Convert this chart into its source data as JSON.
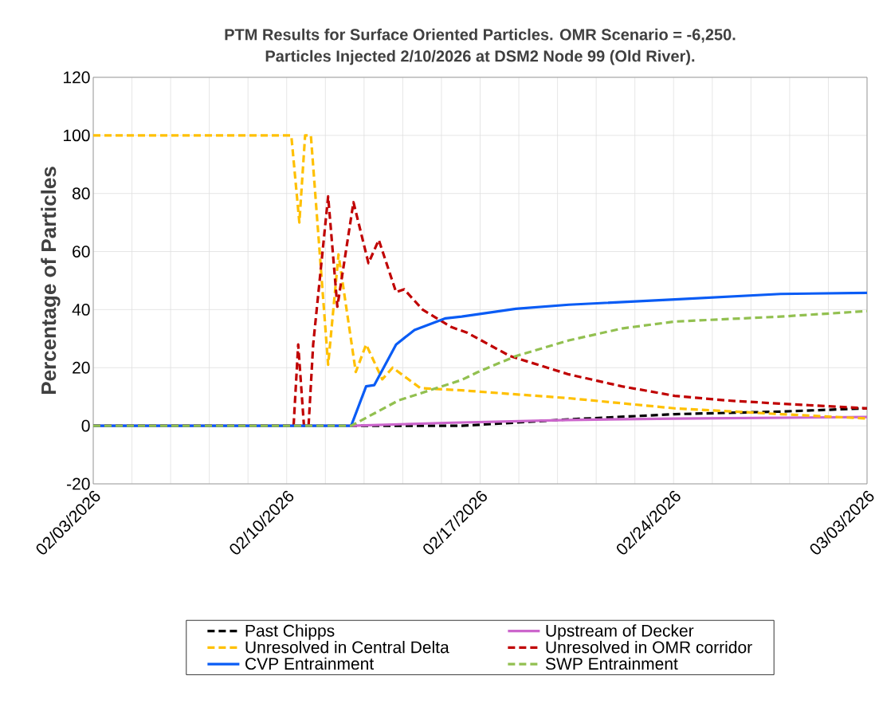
{
  "chart_data": {
    "type": "line",
    "title": "PTM Results for Surface Oriented Particles. OMR Scenario = -6,250.",
    "subtitle": "Particles Injected 2/10/2026 at DSM2 Node 99 (Old River).",
    "ylabel": "Percentage of Particles",
    "xlim": [
      "2026-02-03",
      "2026-03-03"
    ],
    "ylim": [
      -20,
      120
    ],
    "yticks": [
      -20,
      0,
      20,
      40,
      60,
      80,
      100,
      120
    ],
    "xticks": [
      {
        "value": "2026-02-03",
        "label": "02/03/2026"
      },
      {
        "value": "2026-02-04T09:36",
        "label": null
      },
      {
        "value": "2026-02-05T19:12",
        "label": null
      },
      {
        "value": "2026-02-07T04:48",
        "label": null
      },
      {
        "value": "2026-02-08T14:24",
        "label": null
      },
      {
        "value": "2026-02-10",
        "label": "02/10/2026"
      },
      {
        "value": "2026-02-11T09:36",
        "label": null
      },
      {
        "value": "2026-02-12T19:12",
        "label": null
      },
      {
        "value": "2026-02-14T04:48",
        "label": null
      },
      {
        "value": "2026-02-15T14:24",
        "label": null
      },
      {
        "value": "2026-02-17",
        "label": "02/17/2026"
      },
      {
        "value": "2026-02-18T09:36",
        "label": null
      },
      {
        "value": "2026-02-19T19:12",
        "label": null
      },
      {
        "value": "2026-02-21T04:48",
        "label": null
      },
      {
        "value": "2026-02-22T14:24",
        "label": null
      },
      {
        "value": "2026-02-24",
        "label": "02/24/2026"
      },
      {
        "value": "2026-02-25T09:36",
        "label": null
      },
      {
        "value": "2026-02-26T19:12",
        "label": null
      },
      {
        "value": "2026-02-28T04:48",
        "label": null
      },
      {
        "value": "2026-03-01T14:24",
        "label": null
      },
      {
        "value": "2026-03-03",
        "label": "03/03/2026"
      }
    ],
    "grid": true,
    "legend": "bottom",
    "marker": "none",
    "series": [
      {
        "name": "Past Chipps",
        "color": "#000000",
        "line_style": "dashed",
        "x": [
          "2026-02-03",
          "2026-02-16T08:00",
          "2026-02-20T05:00",
          "2026-02-24T01:00",
          "2026-02-27T21:00",
          "2026-03-03"
        ],
        "values": [
          0,
          0,
          2.2,
          4,
          4.9,
          6
        ]
      },
      {
        "name": "Upstream of Decker",
        "color": "#cc66cc",
        "line_style": "solid",
        "x": [
          "2026-02-03",
          "2026-02-12T08:00",
          "2026-02-15T18:00",
          "2026-02-20T05:00",
          "2026-02-24T01:00",
          "2026-03-03"
        ],
        "values": [
          0,
          0,
          1,
          2,
          2.5,
          3
        ]
      },
      {
        "name": "Unresolved in Central Delta",
        "color": "#ffc000",
        "line_style": "dashed",
        "x": [
          "2026-02-03",
          "2026-02-10T04:00",
          "2026-02-10T11:00",
          "2026-02-10T16:00",
          "2026-02-10T21:00",
          "2026-02-11T12:00",
          "2026-02-11T21:00",
          "2026-02-12T12:00",
          "2026-02-12T21:00",
          "2026-02-13T11:00",
          "2026-02-13T20:00",
          "2026-02-14T20:00",
          "2026-02-16T08:00",
          "2026-02-20T05:00",
          "2026-02-24T01:00",
          "2026-02-27T21:00",
          "2026-03-03"
        ],
        "values": [
          100,
          100,
          70,
          100,
          100,
          21,
          59,
          18.5,
          28,
          16,
          20,
          13,
          12.2,
          9.5,
          6,
          4,
          2.5
        ]
      },
      {
        "name": "Unresolved in OMR corridor",
        "color": "#c00000",
        "line_style": "dashed",
        "x": [
          "2026-02-03",
          "2026-02-10T06:00",
          "2026-02-10T10:00",
          "2026-02-10T15:00",
          "2026-02-10T19:00",
          "2026-02-10T23:00",
          "2026-02-11T12:00",
          "2026-02-11T20:00",
          "2026-02-12T10:00",
          "2026-02-12T23:00",
          "2026-02-13T08:00",
          "2026-02-13T23:00",
          "2026-02-14T06:00",
          "2026-02-14T22:00",
          "2026-02-15T23:00",
          "2026-02-16T13:00",
          "2026-02-18T02:00",
          "2026-02-20T05:00",
          "2026-02-22T03:00",
          "2026-02-24T01:00",
          "2026-02-25T23:00",
          "2026-02-27T21:00",
          "2026-03-03"
        ],
        "values": [
          0,
          0,
          28,
          0,
          0,
          28,
          79,
          41,
          77,
          56,
          64,
          46,
          47,
          40,
          34,
          32,
          24,
          17.7,
          13.6,
          10.3,
          8.7,
          7.6,
          6
        ]
      },
      {
        "name": "CVP Entrainment",
        "color": "#0a5cf5",
        "line_style": "solid",
        "x": [
          "2026-02-03",
          "2026-02-12T08:00",
          "2026-02-12T21:00",
          "2026-02-13T04:00",
          "2026-02-13T23:00",
          "2026-02-14T15:00",
          "2026-02-15T18:00",
          "2026-02-16T08:00",
          "2026-02-18T07:00",
          "2026-02-20T05:00",
          "2026-02-24T01:00",
          "2026-02-27T21:00",
          "2026-03-03"
        ],
        "values": [
          0,
          0,
          13.6,
          14,
          28,
          33,
          37,
          37.6,
          40.3,
          41.7,
          43.5,
          45.4,
          45.8
        ]
      },
      {
        "name": "SWP Entrainment",
        "color": "#92c050",
        "line_style": "dashed",
        "x": [
          "2026-02-03",
          "2026-02-12T08:00",
          "2026-02-14T01:00",
          "2026-02-16T08:00",
          "2026-02-16T22:00",
          "2026-02-18T07:00",
          "2026-02-20T05:00",
          "2026-02-22T03:00",
          "2026-02-24T01:00",
          "2026-02-27T21:00",
          "2026-03-03"
        ],
        "values": [
          0,
          0,
          8.7,
          15.8,
          18.5,
          24,
          29.4,
          33.5,
          35.9,
          37.6,
          39.5
        ]
      }
    ]
  }
}
